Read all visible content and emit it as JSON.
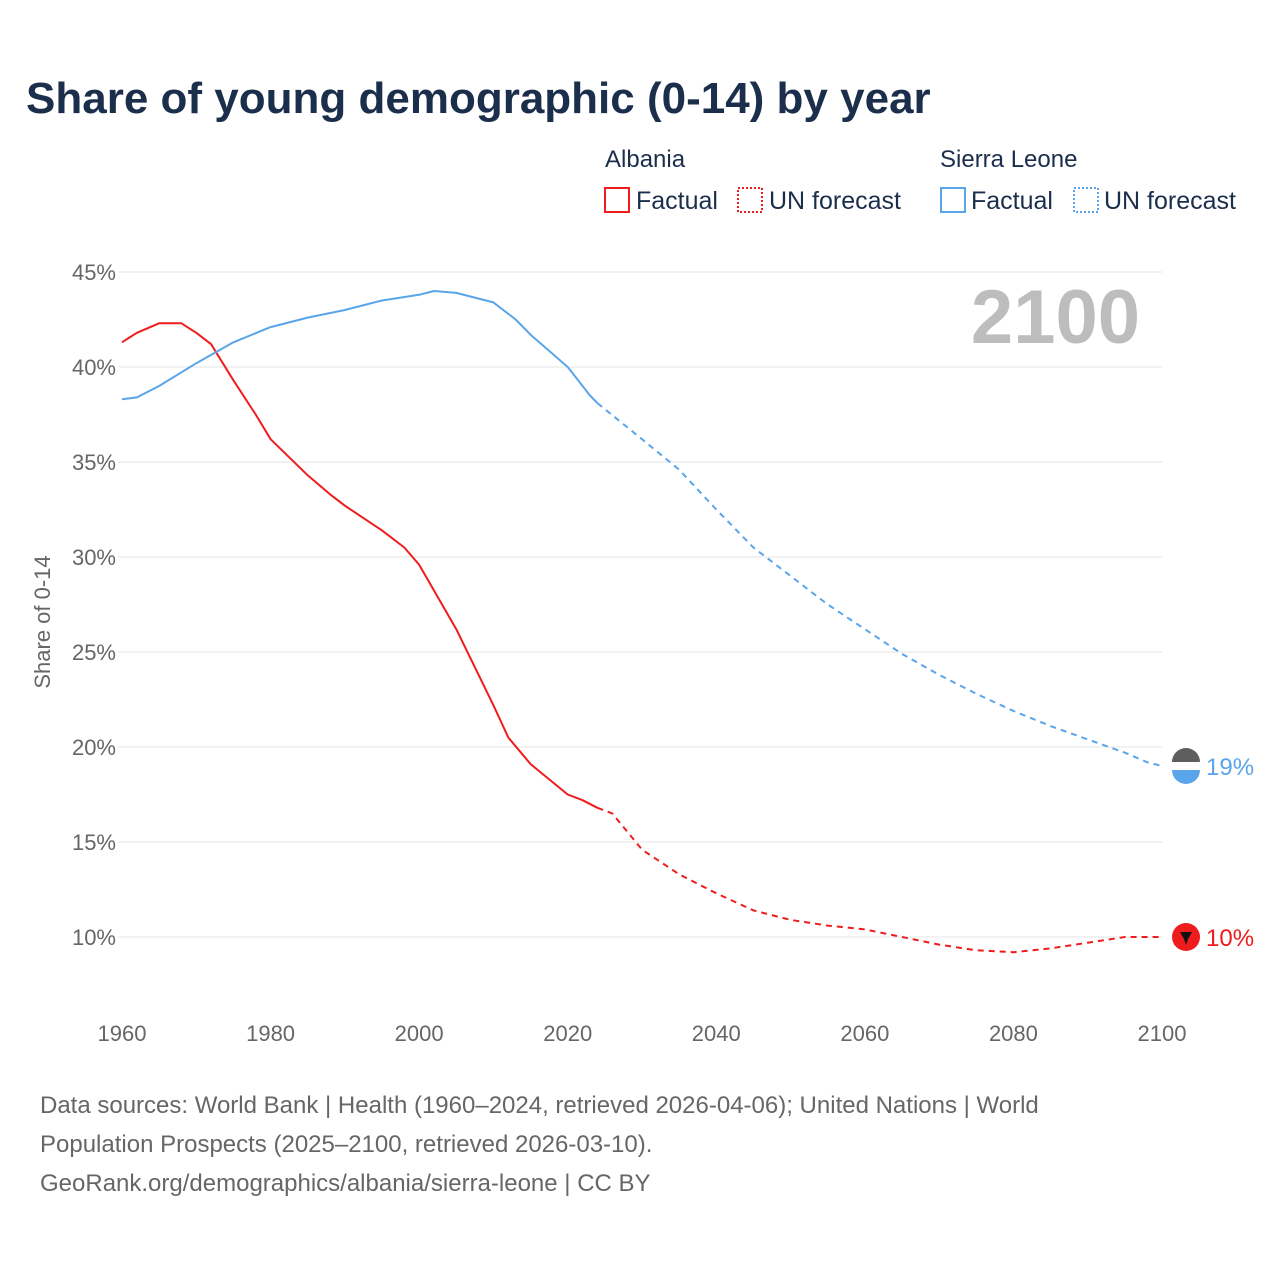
{
  "chart_data": {
    "type": "line",
    "title": "Share of young demographic (0-14) by year",
    "ylabel": "Share of 0-14",
    "xlabel": "",
    "xlim": [
      1960,
      2100
    ],
    "ylim": [
      10,
      45
    ],
    "x_ticks": [
      "1960",
      "1980",
      "2000",
      "2020",
      "2040",
      "2060",
      "2080",
      "2100"
    ],
    "x_tick_values": [
      1960,
      1980,
      2000,
      2020,
      2040,
      2060,
      2080,
      2100
    ],
    "y_ticks": [
      "10%",
      "15%",
      "20%",
      "25%",
      "30%",
      "35%",
      "40%",
      "45%"
    ],
    "y_tick_values": [
      10,
      15,
      20,
      25,
      30,
      35,
      40,
      45
    ],
    "year_label": "2100",
    "legend": {
      "groups": [
        {
          "name": "Albania",
          "factual": "Factual",
          "forecast": "UN forecast",
          "color": "#ee1c1c"
        },
        {
          "name": "Sierra Leone",
          "factual": "Factual",
          "forecast": "UN forecast",
          "color": "#5aa5ea"
        }
      ]
    },
    "series": [
      {
        "name": "Albania",
        "kind": "factual",
        "color": "#ee1c1c",
        "x": [
          1960,
          1962,
          1965,
          1968,
          1970,
          1972,
          1975,
          1978,
          1980,
          1985,
          1988,
          1990,
          1995,
          1998,
          2000,
          2005,
          2010,
          2012,
          2015,
          2020,
          2022,
          2024
        ],
        "values": [
          41.3,
          41.8,
          42.3,
          42.3,
          41.8,
          41.2,
          39.3,
          37.5,
          36.2,
          34.3,
          33.3,
          32.7,
          31.4,
          30.5,
          29.6,
          26.2,
          22.2,
          20.5,
          19.1,
          17.5,
          17.2,
          16.8
        ]
      },
      {
        "name": "Albania",
        "kind": "forecast",
        "color": "#ee1c1c",
        "x": [
          2024,
          2026,
          2030,
          2035,
          2040,
          2045,
          2050,
          2055,
          2060,
          2065,
          2070,
          2075,
          2080,
          2085,
          2090,
          2095,
          2100
        ],
        "values": [
          16.8,
          16.5,
          14.6,
          13.3,
          12.3,
          11.4,
          10.9,
          10.6,
          10.4,
          10.0,
          9.6,
          9.3,
          9.2,
          9.4,
          9.7,
          10.0,
          10.0
        ]
      },
      {
        "name": "Sierra Leone",
        "kind": "factual",
        "color": "#5aa5ea",
        "x": [
          1960,
          1962,
          1965,
          1970,
          1975,
          1980,
          1985,
          1990,
          1995,
          2000,
          2002,
          2005,
          2010,
          2013,
          2015,
          2020,
          2023,
          2024
        ],
        "values": [
          38.3,
          38.4,
          39.0,
          40.2,
          41.3,
          42.1,
          42.6,
          43.0,
          43.5,
          43.8,
          44.0,
          43.9,
          43.4,
          42.5,
          41.7,
          40.0,
          38.5,
          38.1
        ]
      },
      {
        "name": "Sierra Leone",
        "kind": "forecast",
        "color": "#5aa5ea",
        "x": [
          2024,
          2030,
          2035,
          2040,
          2045,
          2050,
          2055,
          2060,
          2065,
          2070,
          2075,
          2080,
          2085,
          2090,
          2095,
          2098,
          2100
        ],
        "values": [
          38.1,
          36.2,
          34.6,
          32.5,
          30.5,
          29.0,
          27.5,
          26.2,
          24.9,
          23.8,
          22.8,
          21.9,
          21.1,
          20.4,
          19.7,
          19.2,
          19.0
        ]
      }
    ],
    "end_labels": [
      {
        "country": "Sierra Leone",
        "text": "19%",
        "value": 19,
        "color": "#5aa5ea"
      },
      {
        "country": "Albania",
        "text": "10%",
        "value": 10,
        "color": "#ee1c1c"
      }
    ]
  },
  "source": {
    "line1": "Data sources: World Bank | Health (1960–2024, retrieved 2026-04-06); United Nations | World",
    "line2": "Population Prospects (2025–2100, retrieved 2026-03-10).",
    "line3": "GeoRank.org/demographics/albania/sierra-leone | CC BY"
  }
}
